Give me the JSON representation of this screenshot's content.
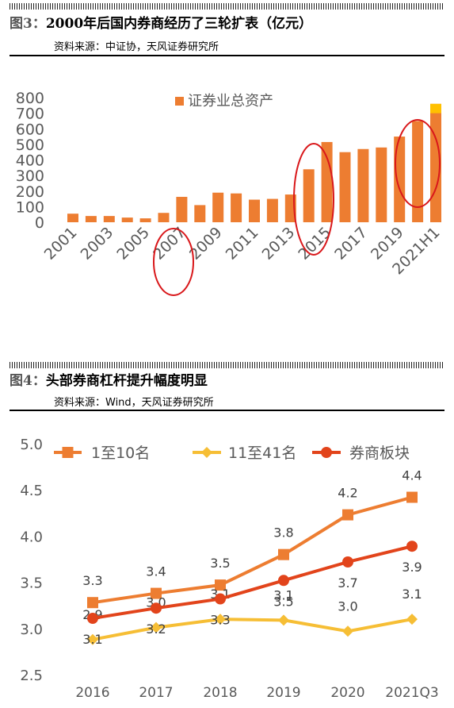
{
  "figure3": {
    "label": "图3：",
    "title": "2000年后国内券商经历了三轮扩表（亿元）",
    "source": "资料来源：中证协，天风证券研究所"
  },
  "figure4": {
    "label": "图4：",
    "title": "头部券商杠杆提升幅度明显",
    "source": "资料来源：Wind，天风证券研究所"
  },
  "chart_data": [
    {
      "type": "bar",
      "categories": [
        "2001",
        "2002",
        "2003",
        "2004",
        "2005",
        "2006",
        "2007",
        "2008",
        "2009",
        "2010",
        "2011",
        "2012",
        "2013",
        "2014",
        "2015",
        "2016",
        "2017",
        "2018",
        "2019",
        "2020",
        "2021H1"
      ],
      "tick_labels": [
        "2001",
        "2003",
        "2005",
        "2007",
        "2009",
        "2011",
        "2013",
        "2015",
        "2017",
        "2019",
        "2021H1"
      ],
      "series": [
        {
          "name": "证券业总资产",
          "values": [
            55,
            40,
            40,
            30,
            25,
            60,
            163,
            110,
            190,
            185,
            145,
            150,
            178,
            340,
            515,
            450,
            470,
            480,
            550,
            650,
            760
          ],
          "color": "#ED7D31"
        }
      ],
      "ylim": [
        0,
        800
      ],
      "yticks": [
        0,
        100,
        200,
        300,
        400,
        500,
        600,
        700,
        800
      ],
      "legend": "top",
      "grid": false,
      "highlighted_categories": [
        "2007",
        "2015",
        "2020"
      ]
    },
    {
      "type": "line",
      "categories": [
        "2016",
        "2017",
        "2018",
        "2019",
        "2020",
        "2021Q3"
      ],
      "series": [
        {
          "name": "1至10名",
          "values": [
            3.28,
            3.38,
            3.47,
            3.8,
            4.23,
            4.42
          ],
          "labels": [
            "3.3",
            "3.4",
            "3.5",
            "3.8",
            "4.2",
            "4.4"
          ],
          "color": "#ED7D31",
          "marker": "square"
        },
        {
          "name": "11至41名",
          "values": [
            2.88,
            3.01,
            3.1,
            3.09,
            2.97,
            3.1
          ],
          "labels": [
            "2.9",
            "3.0",
            "3.1",
            "3.1",
            "3.0",
            "3.1"
          ],
          "color": "#F6BE35",
          "marker": "diamond"
        },
        {
          "name": "券商板块",
          "values": [
            3.11,
            3.22,
            3.32,
            3.52,
            3.72,
            3.89
          ],
          "labels": [
            "3.1",
            "3.2",
            "3.3",
            "3.5",
            "3.7",
            "3.9"
          ],
          "color": "#E2441B",
          "marker": "circle"
        }
      ],
      "ylim": [
        2.5,
        5.0
      ],
      "yticks": [
        "2.5",
        "3.0",
        "3.5",
        "4.0",
        "4.5",
        "5.0"
      ],
      "legend": "top",
      "grid": false
    }
  ]
}
